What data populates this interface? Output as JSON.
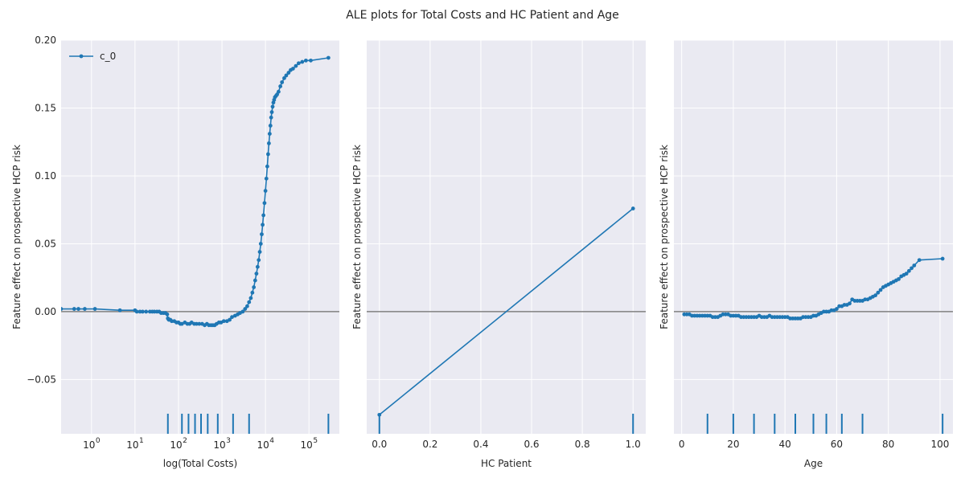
{
  "figure": {
    "title": "ALE plots for Total Costs and HC Patient and Age",
    "background": "#ffffff",
    "axes_facecolor": "#eaeaf2",
    "grid_color": "#ffffff",
    "series_color": "#1f77b4",
    "zero_line_color": "#808080"
  },
  "chart_data": [
    {
      "type": "line",
      "xlabel": "log(Total Costs)",
      "ylabel": "Feature effect on prospective HCP risk",
      "xscale": "log",
      "xlim": [
        0.2,
        500000
      ],
      "ylim": [
        -0.09,
        0.2
      ],
      "xtick_values": [
        1,
        10,
        100,
        1000,
        10000,
        100000
      ],
      "xtick_labels": [
        {
          "base": "10",
          "exp": "0"
        },
        {
          "base": "10",
          "exp": "1"
        },
        {
          "base": "10",
          "exp": "2"
        },
        {
          "base": "10",
          "exp": "3"
        },
        {
          "base": "10",
          "exp": "4"
        },
        {
          "base": "10",
          "exp": "5"
        }
      ],
      "ytick_values": [
        -0.05,
        0.0,
        0.05,
        0.1,
        0.15,
        0.2
      ],
      "ytick_labels": [
        "−0.05",
        "0.00",
        "0.05",
        "0.10",
        "0.15",
        "0.20"
      ],
      "legend": {
        "entries": [
          "c_0"
        ],
        "position": "top-left"
      },
      "series": [
        {
          "name": "c_0",
          "x": [
            0.2,
            0.4,
            0.5,
            0.7,
            1.2,
            4.5,
            10,
            11,
            13,
            15,
            18,
            22,
            25,
            28,
            32,
            36,
            40,
            45,
            50,
            55,
            57,
            60,
            65,
            70,
            80,
            90,
            100,
            110,
            120,
            140,
            160,
            180,
            200,
            230,
            260,
            300,
            350,
            400,
            450,
            500,
            560,
            620,
            680,
            750,
            850,
            950,
            1100,
            1300,
            1500,
            1700,
            2000,
            2300,
            2600,
            3000,
            3400,
            3800,
            4200,
            4600,
            5000,
            5400,
            5800,
            6200,
            6600,
            7000,
            7400,
            7800,
            8200,
            8600,
            9000,
            9500,
            10000,
            10500,
            11000,
            11500,
            12000,
            12500,
            13000,
            13500,
            14000,
            14600,
            15200,
            15800,
            16500,
            17500,
            18500,
            20000,
            22000,
            24000,
            27000,
            30000,
            34000,
            38000,
            43000,
            50000,
            58000,
            70000,
            85000,
            110000,
            280000
          ],
          "y": [
            0.002,
            0.002,
            0.002,
            0.002,
            0.002,
            0.001,
            0.001,
            0.0,
            0.0,
            0.0,
            0.0,
            0.0,
            0.0,
            0.0,
            0.0,
            0.0,
            -0.001,
            -0.001,
            -0.001,
            -0.002,
            -0.005,
            -0.006,
            -0.006,
            -0.007,
            -0.007,
            -0.008,
            -0.008,
            -0.009,
            -0.009,
            -0.008,
            -0.009,
            -0.009,
            -0.008,
            -0.009,
            -0.009,
            -0.009,
            -0.009,
            -0.01,
            -0.009,
            -0.01,
            -0.01,
            -0.01,
            -0.01,
            -0.009,
            -0.008,
            -0.008,
            -0.007,
            -0.007,
            -0.006,
            -0.004,
            -0.003,
            -0.002,
            -0.001,
            0.0,
            0.002,
            0.004,
            0.007,
            0.01,
            0.014,
            0.018,
            0.023,
            0.028,
            0.033,
            0.038,
            0.044,
            0.05,
            0.057,
            0.064,
            0.071,
            0.08,
            0.089,
            0.098,
            0.107,
            0.116,
            0.124,
            0.131,
            0.137,
            0.143,
            0.147,
            0.151,
            0.154,
            0.156,
            0.158,
            0.159,
            0.16,
            0.162,
            0.166,
            0.169,
            0.172,
            0.174,
            0.176,
            0.178,
            0.179,
            0.181,
            0.183,
            0.184,
            0.185,
            0.185,
            0.187
          ],
          "rug_x": [
            57,
            120,
            170,
            240,
            330,
            470,
            800,
            1800,
            4200,
            280000
          ]
        }
      ]
    },
    {
      "type": "line",
      "xlabel": "HC Patient",
      "ylabel": "Feature effect on prospective HCP risk",
      "xscale": "linear",
      "xlim": [
        -0.05,
        1.05
      ],
      "ylim": [
        -0.09,
        0.2
      ],
      "xtick_values": [
        0.0,
        0.2,
        0.4,
        0.6,
        0.8,
        1.0
      ],
      "xtick_labels": [
        "0.0",
        "0.2",
        "0.4",
        "0.6",
        "0.8",
        "1.0"
      ],
      "ytick_values": [
        -0.05,
        0.0,
        0.05,
        0.1,
        0.15,
        0.2
      ],
      "ytick_labels": [],
      "series": [
        {
          "name": "c_0",
          "x": [
            0.0,
            1.0
          ],
          "y": [
            -0.076,
            0.076
          ],
          "rug_x": [
            0.0,
            1.0
          ]
        }
      ]
    },
    {
      "type": "line",
      "xlabel": "Age",
      "ylabel": "Feature effect on prospective HCP risk",
      "xscale": "linear",
      "xlim": [
        -3,
        105
      ],
      "ylim": [
        -0.09,
        0.2
      ],
      "xtick_values": [
        0,
        20,
        40,
        60,
        80,
        100
      ],
      "xtick_labels": [
        "0",
        "20",
        "40",
        "60",
        "80",
        "100"
      ],
      "ytick_values": [
        -0.05,
        0.0,
        0.05,
        0.1,
        0.15,
        0.2
      ],
      "ytick_labels": [],
      "series": [
        {
          "name": "c_0",
          "x": [
            1,
            2,
            3,
            4,
            5,
            6,
            7,
            8,
            9,
            10,
            11,
            12,
            13,
            14,
            15,
            16,
            17,
            18,
            19,
            20,
            21,
            22,
            23,
            24,
            25,
            26,
            27,
            28,
            29,
            30,
            31,
            32,
            33,
            34,
            35,
            36,
            37,
            38,
            39,
            40,
            41,
            42,
            43,
            44,
            45,
            46,
            47,
            48,
            49,
            50,
            51,
            52,
            53,
            54,
            55,
            56,
            57,
            58,
            59,
            60,
            61,
            62,
            63,
            64,
            65,
            66,
            67,
            68,
            69,
            70,
            71,
            72,
            73,
            74,
            75,
            76,
            77,
            78,
            79,
            80,
            81,
            82,
            83,
            84,
            85,
            86,
            87,
            88,
            89,
            90,
            92,
            101
          ],
          "y": [
            -0.002,
            -0.002,
            -0.002,
            -0.003,
            -0.003,
            -0.003,
            -0.003,
            -0.003,
            -0.003,
            -0.003,
            -0.003,
            -0.004,
            -0.004,
            -0.004,
            -0.003,
            -0.002,
            -0.002,
            -0.002,
            -0.003,
            -0.003,
            -0.003,
            -0.003,
            -0.004,
            -0.004,
            -0.004,
            -0.004,
            -0.004,
            -0.004,
            -0.004,
            -0.003,
            -0.004,
            -0.004,
            -0.004,
            -0.003,
            -0.004,
            -0.004,
            -0.004,
            -0.004,
            -0.004,
            -0.004,
            -0.004,
            -0.005,
            -0.005,
            -0.005,
            -0.005,
            -0.005,
            -0.004,
            -0.004,
            -0.004,
            -0.004,
            -0.003,
            -0.003,
            -0.002,
            -0.001,
            0.0,
            0.0,
            0.0,
            0.001,
            0.001,
            0.002,
            0.004,
            0.004,
            0.005,
            0.005,
            0.006,
            0.009,
            0.008,
            0.008,
            0.008,
            0.008,
            0.009,
            0.009,
            0.01,
            0.011,
            0.012,
            0.014,
            0.016,
            0.018,
            0.019,
            0.02,
            0.021,
            0.022,
            0.023,
            0.024,
            0.026,
            0.027,
            0.028,
            0.03,
            0.032,
            0.034,
            0.038,
            0.039
          ],
          "rug_x": [
            10,
            20,
            28,
            36,
            44,
            51,
            56,
            62,
            70,
            101
          ]
        }
      ]
    }
  ]
}
